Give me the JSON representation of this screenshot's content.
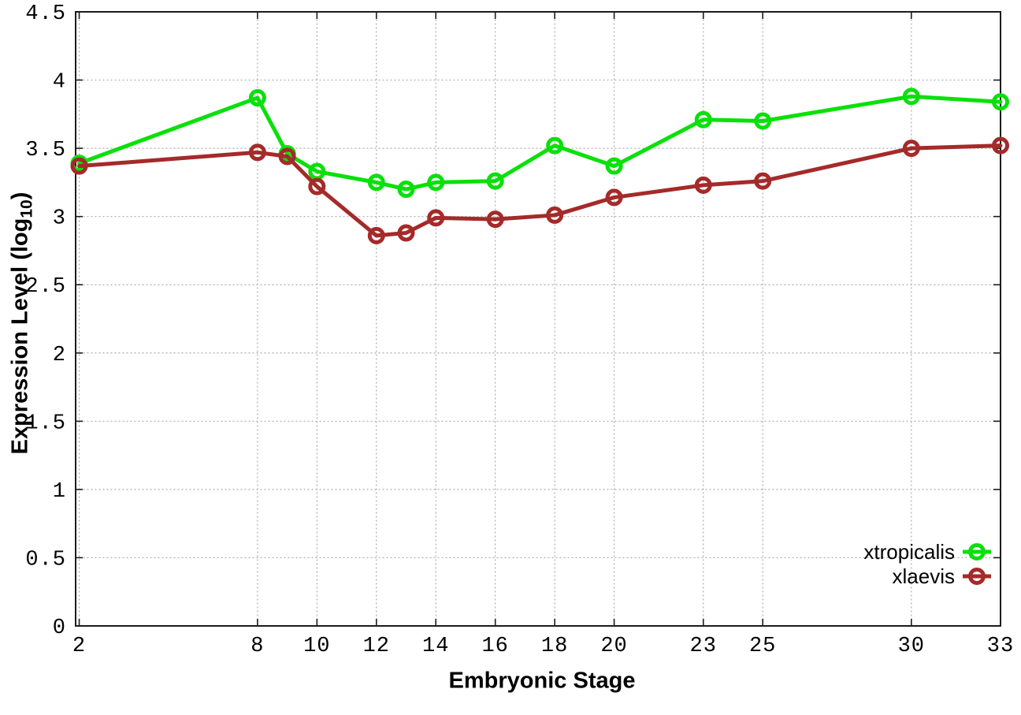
{
  "axis_titles": {
    "x": "Embryonic Stage",
    "y_main": "Expression Level (log",
    "y_sub": "10",
    "y_end": ")"
  },
  "chart_data": {
    "type": "line",
    "title": "",
    "xlabel": "Embryonic Stage",
    "ylabel": "Expression Level (log10)",
    "x": [
      2,
      8,
      9,
      10,
      12,
      13,
      14,
      16,
      18,
      20,
      23,
      25,
      30,
      33
    ],
    "series": [
      {
        "name": "xtropicalis",
        "color": "#0ae00a",
        "values": [
          3.39,
          3.87,
          3.46,
          3.33,
          3.25,
          3.2,
          3.25,
          3.26,
          3.52,
          3.37,
          3.71,
          3.7,
          3.88,
          3.84
        ]
      },
      {
        "name": "xlaevis",
        "color": "#a52a2a",
        "values": [
          3.37,
          3.47,
          3.44,
          3.22,
          2.86,
          2.88,
          2.99,
          2.98,
          3.01,
          3.14,
          3.23,
          3.26,
          3.5,
          3.52
        ]
      }
    ],
    "xticks": [
      2,
      8,
      10,
      12,
      14,
      16,
      18,
      20,
      23,
      25,
      30,
      33
    ],
    "xtick_labels": [
      "2",
      "8",
      "10",
      "12",
      "14",
      "16",
      "18",
      "20",
      "23",
      "25",
      "30",
      "33"
    ],
    "yticks": [
      0,
      0.5,
      1,
      1.5,
      2,
      2.5,
      3,
      3.5,
      4,
      4.5
    ],
    "ytick_labels": [
      "0",
      "0.5",
      "1",
      "1.5",
      "2",
      "2.5",
      "3",
      "3.5",
      "4",
      "4.5"
    ],
    "xlim": [
      1.88,
      33
    ],
    "ylim": [
      0,
      4.5
    ],
    "grid": true,
    "legend_position": "bottom-right"
  },
  "style": {
    "grid_color": "#aaaaaa",
    "axis_color": "#1c1c1c",
    "text_color": "#000000",
    "background": "#ffffff"
  }
}
